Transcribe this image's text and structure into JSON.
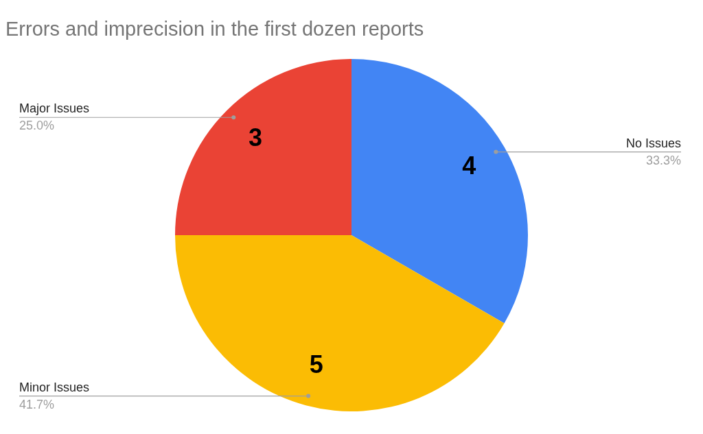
{
  "chart_data": {
    "type": "pie",
    "title": "Errors and imprecision in the first dozen reports",
    "categories": [
      "No Issues",
      "Minor Issues",
      "Major Issues"
    ],
    "values": [
      4,
      5,
      3
    ],
    "colors": [
      "#4285f4",
      "#fbbc04",
      "#ea4335"
    ],
    "data_labels": true,
    "annotations": [
      "33.3%",
      "41.7%",
      "25.0%"
    ],
    "legend": false
  }
}
